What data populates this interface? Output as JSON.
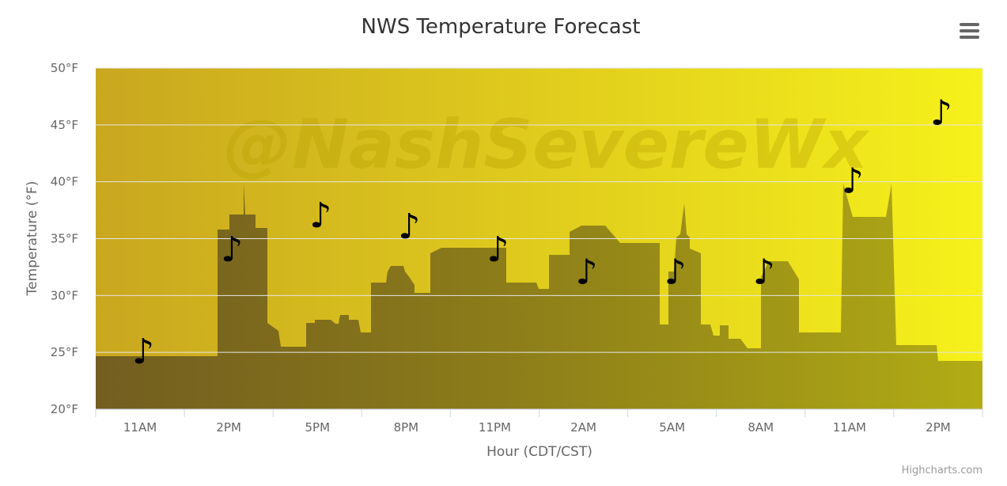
{
  "chart_data": {
    "type": "scatter",
    "title": "NWS Temperature Forecast",
    "xlabel": "Hour (CDT/CST)",
    "ylabel": "Temperature (°F)",
    "ylim": [
      20,
      50
    ],
    "yticks": [
      "20°F",
      "25°F",
      "30°F",
      "35°F",
      "40°F",
      "45°F",
      "50°F"
    ],
    "ytick_values": [
      20,
      25,
      30,
      35,
      40,
      45,
      50
    ],
    "categories": [
      "11AM",
      "2PM",
      "5PM",
      "8PM",
      "11PM",
      "2AM",
      "5AM",
      "8AM",
      "11AM",
      "2PM"
    ],
    "grid": true,
    "legend": "none",
    "marker_symbol": "♪",
    "series": [
      {
        "values": [
          25,
          34,
          37,
          36,
          34,
          32,
          32,
          32,
          40,
          46
        ]
      }
    ],
    "plot_background": {
      "from": "#c9a71f",
      "to": "#f6f11b"
    },
    "skyline_color": "#6e5a18",
    "watermark": "@NashSevereWx"
  },
  "credits": "Highcharts.com",
  "menu_icon": "hamburger-menu-icon"
}
